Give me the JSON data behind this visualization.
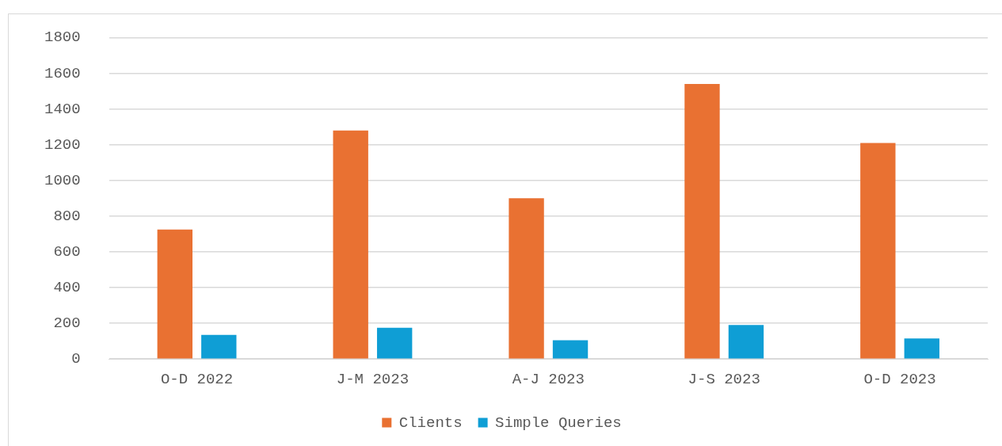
{
  "chart_data": {
    "type": "bar",
    "categories": [
      "O-D 2022",
      "J-M 2023",
      "A-J 2023",
      "J-S 2023",
      "O-D 2023"
    ],
    "series": [
      {
        "name": "Clients",
        "color": "#e97132",
        "values": [
          725,
          1280,
          900,
          1540,
          1210
        ]
      },
      {
        "name": "Simple Queries",
        "color": "#0f9ed5",
        "values": [
          135,
          175,
          105,
          190,
          115
        ]
      }
    ],
    "ylim": [
      0,
      1800
    ],
    "yticks": [
      0,
      200,
      400,
      600,
      800,
      1000,
      1200,
      1400,
      1600,
      1800
    ],
    "grid": "y",
    "legend": "bottom"
  }
}
